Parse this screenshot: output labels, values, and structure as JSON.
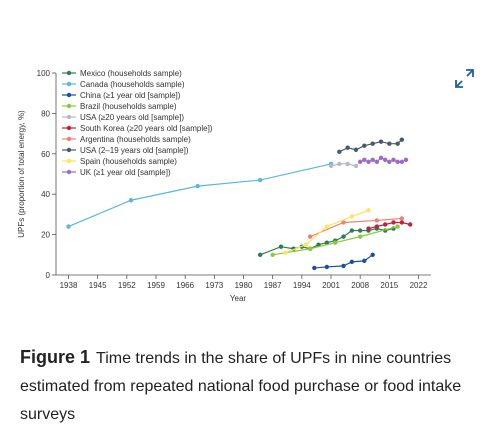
{
  "chart_data": {
    "type": "line",
    "x_label": "Year",
    "y_label": "UPFs (proportion of total energy, %)",
    "xlim": [
      1935,
      2025
    ],
    "xticks": [
      1938,
      1945,
      1952,
      1959,
      1966,
      1973,
      1980,
      1987,
      1994,
      2001,
      2008,
      2015,
      2022
    ],
    "ylim": [
      0,
      100
    ],
    "yticks": [
      0,
      20,
      40,
      60,
      80,
      100
    ],
    "legend": "upper left",
    "series": [
      {
        "name": "Mexico (households sample)",
        "color": "#2e7d4f",
        "x": [
          1984,
          1989,
          1992,
          1994,
          1996,
          1998,
          2000,
          2002,
          2004,
          2006,
          2008,
          2010,
          2012,
          2014,
          2016
        ],
        "values": [
          10,
          14,
          13,
          14,
          13,
          15,
          16,
          17,
          19,
          22,
          22,
          22,
          23,
          22,
          23
        ]
      },
      {
        "name": "Canada (households sample)",
        "color": "#5bb8d8",
        "x": [
          1938,
          1953,
          1969,
          1984,
          2001
        ],
        "values": [
          24,
          37,
          44,
          47,
          55
        ]
      },
      {
        "name": "China (≥1 year old [sample])",
        "color": "#1f4e9c",
        "x": [
          1997,
          2000,
          2004,
          2006,
          2009,
          2011
        ],
        "values": [
          3.5,
          4,
          4.5,
          6.5,
          7,
          10
        ]
      },
      {
        "name": "Brazil (households sample)",
        "color": "#8dc63f",
        "x": [
          1987,
          1996,
          2002,
          2008,
          2017
        ],
        "values": [
          10,
          13,
          16,
          19,
          24
        ]
      },
      {
        "name": "USA (≥20 years old [sample])",
        "color": "#b8b8c8",
        "x": [
          2001,
          2003,
          2005,
          2007
        ],
        "values": [
          54,
          55,
          55,
          54
        ]
      },
      {
        "name": "South Korea (≥20 years old [sample])",
        "color": "#c0223b",
        "x": [
          2010,
          2012,
          2014,
          2016,
          2018,
          2020
        ],
        "values": [
          23,
          24,
          25,
          26,
          26,
          25
        ]
      },
      {
        "name": "Argentina (households sample)",
        "color": "#f08070",
        "x": [
          1996,
          2004,
          2012,
          2018
        ],
        "values": [
          19,
          26,
          27,
          28
        ]
      },
      {
        "name": "USA (2–19 years old [sample])",
        "color": "#4a5a6a",
        "x": [
          2003,
          2005,
          2007,
          2009,
          2011,
          2013,
          2015,
          2017,
          2018
        ],
        "values": [
          61,
          63,
          62,
          64,
          65,
          66,
          65,
          65,
          67
        ]
      },
      {
        "name": "Spain (households sample)",
        "color": "#ffe45c",
        "x": [
          1990,
          1995,
          2000,
          2006,
          2010
        ],
        "values": [
          11,
          15,
          24,
          29,
          32
        ]
      },
      {
        "name": "UK (≥1 year old [sample])",
        "color": "#9b6bc8",
        "x": [
          2008,
          2009,
          2010,
          2011,
          2012,
          2013,
          2014,
          2015,
          2016,
          2017,
          2018,
          2019
        ],
        "values": [
          56,
          57,
          56,
          57,
          56,
          58,
          57,
          56,
          57,
          56,
          56,
          57
        ]
      }
    ]
  },
  "caption": {
    "label": "Figure 1",
    "text": "Time trends in the share of UPFs in nine countries estimated from repeated national food purchase or food intake surveys"
  }
}
